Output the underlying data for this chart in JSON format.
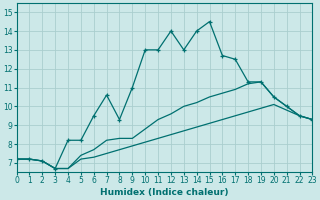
{
  "xlabel": "Humidex (Indice chaleur)",
  "xlim": [
    0,
    23
  ],
  "ylim": [
    6.5,
    15.5
  ],
  "xticks": [
    0,
    1,
    2,
    3,
    4,
    5,
    6,
    7,
    8,
    9,
    10,
    11,
    12,
    13,
    14,
    15,
    16,
    17,
    18,
    19,
    20,
    21,
    22,
    23
  ],
  "yticks": [
    7,
    8,
    9,
    10,
    11,
    12,
    13,
    14,
    15
  ],
  "bg_color": "#cce8e8",
  "line_color": "#007070",
  "grid_color": "#aacece",
  "series1_x": [
    0,
    1,
    2,
    3,
    4,
    5,
    6,
    7,
    8,
    9,
    10,
    11,
    12,
    13,
    14,
    15,
    16,
    17,
    18,
    19,
    20,
    21,
    22,
    23
  ],
  "series1_y": [
    7.2,
    7.2,
    7.1,
    6.7,
    6.7,
    7.2,
    7.3,
    7.5,
    7.7,
    7.9,
    8.1,
    8.3,
    8.5,
    8.7,
    8.9,
    9.1,
    9.3,
    9.5,
    9.7,
    9.9,
    10.1,
    9.8,
    9.5,
    9.3
  ],
  "series2_x": [
    0,
    1,
    2,
    3,
    4,
    5,
    6,
    7,
    8,
    9,
    10,
    11,
    12,
    13,
    14,
    15,
    16,
    17,
    18,
    19,
    20,
    21,
    22,
    23
  ],
  "series2_y": [
    7.2,
    7.2,
    7.1,
    6.7,
    6.7,
    7.4,
    7.7,
    8.2,
    8.3,
    8.3,
    8.8,
    9.3,
    9.6,
    10.0,
    10.2,
    10.5,
    10.7,
    10.9,
    11.2,
    11.3,
    10.5,
    10.0,
    9.5,
    9.3
  ],
  "series3_x": [
    0,
    1,
    2,
    3,
    4,
    5,
    6,
    7,
    8,
    9,
    10,
    11,
    12,
    13,
    14,
    15,
    16,
    17,
    18,
    19,
    20,
    21,
    22,
    23
  ],
  "series3_y": [
    7.2,
    7.2,
    7.1,
    6.7,
    8.2,
    8.2,
    9.5,
    10.6,
    9.3,
    11.0,
    13.0,
    13.0,
    14.0,
    13.0,
    14.0,
    14.5,
    12.7,
    12.5,
    11.3,
    11.3,
    10.5,
    10.0,
    9.5,
    9.3
  ]
}
